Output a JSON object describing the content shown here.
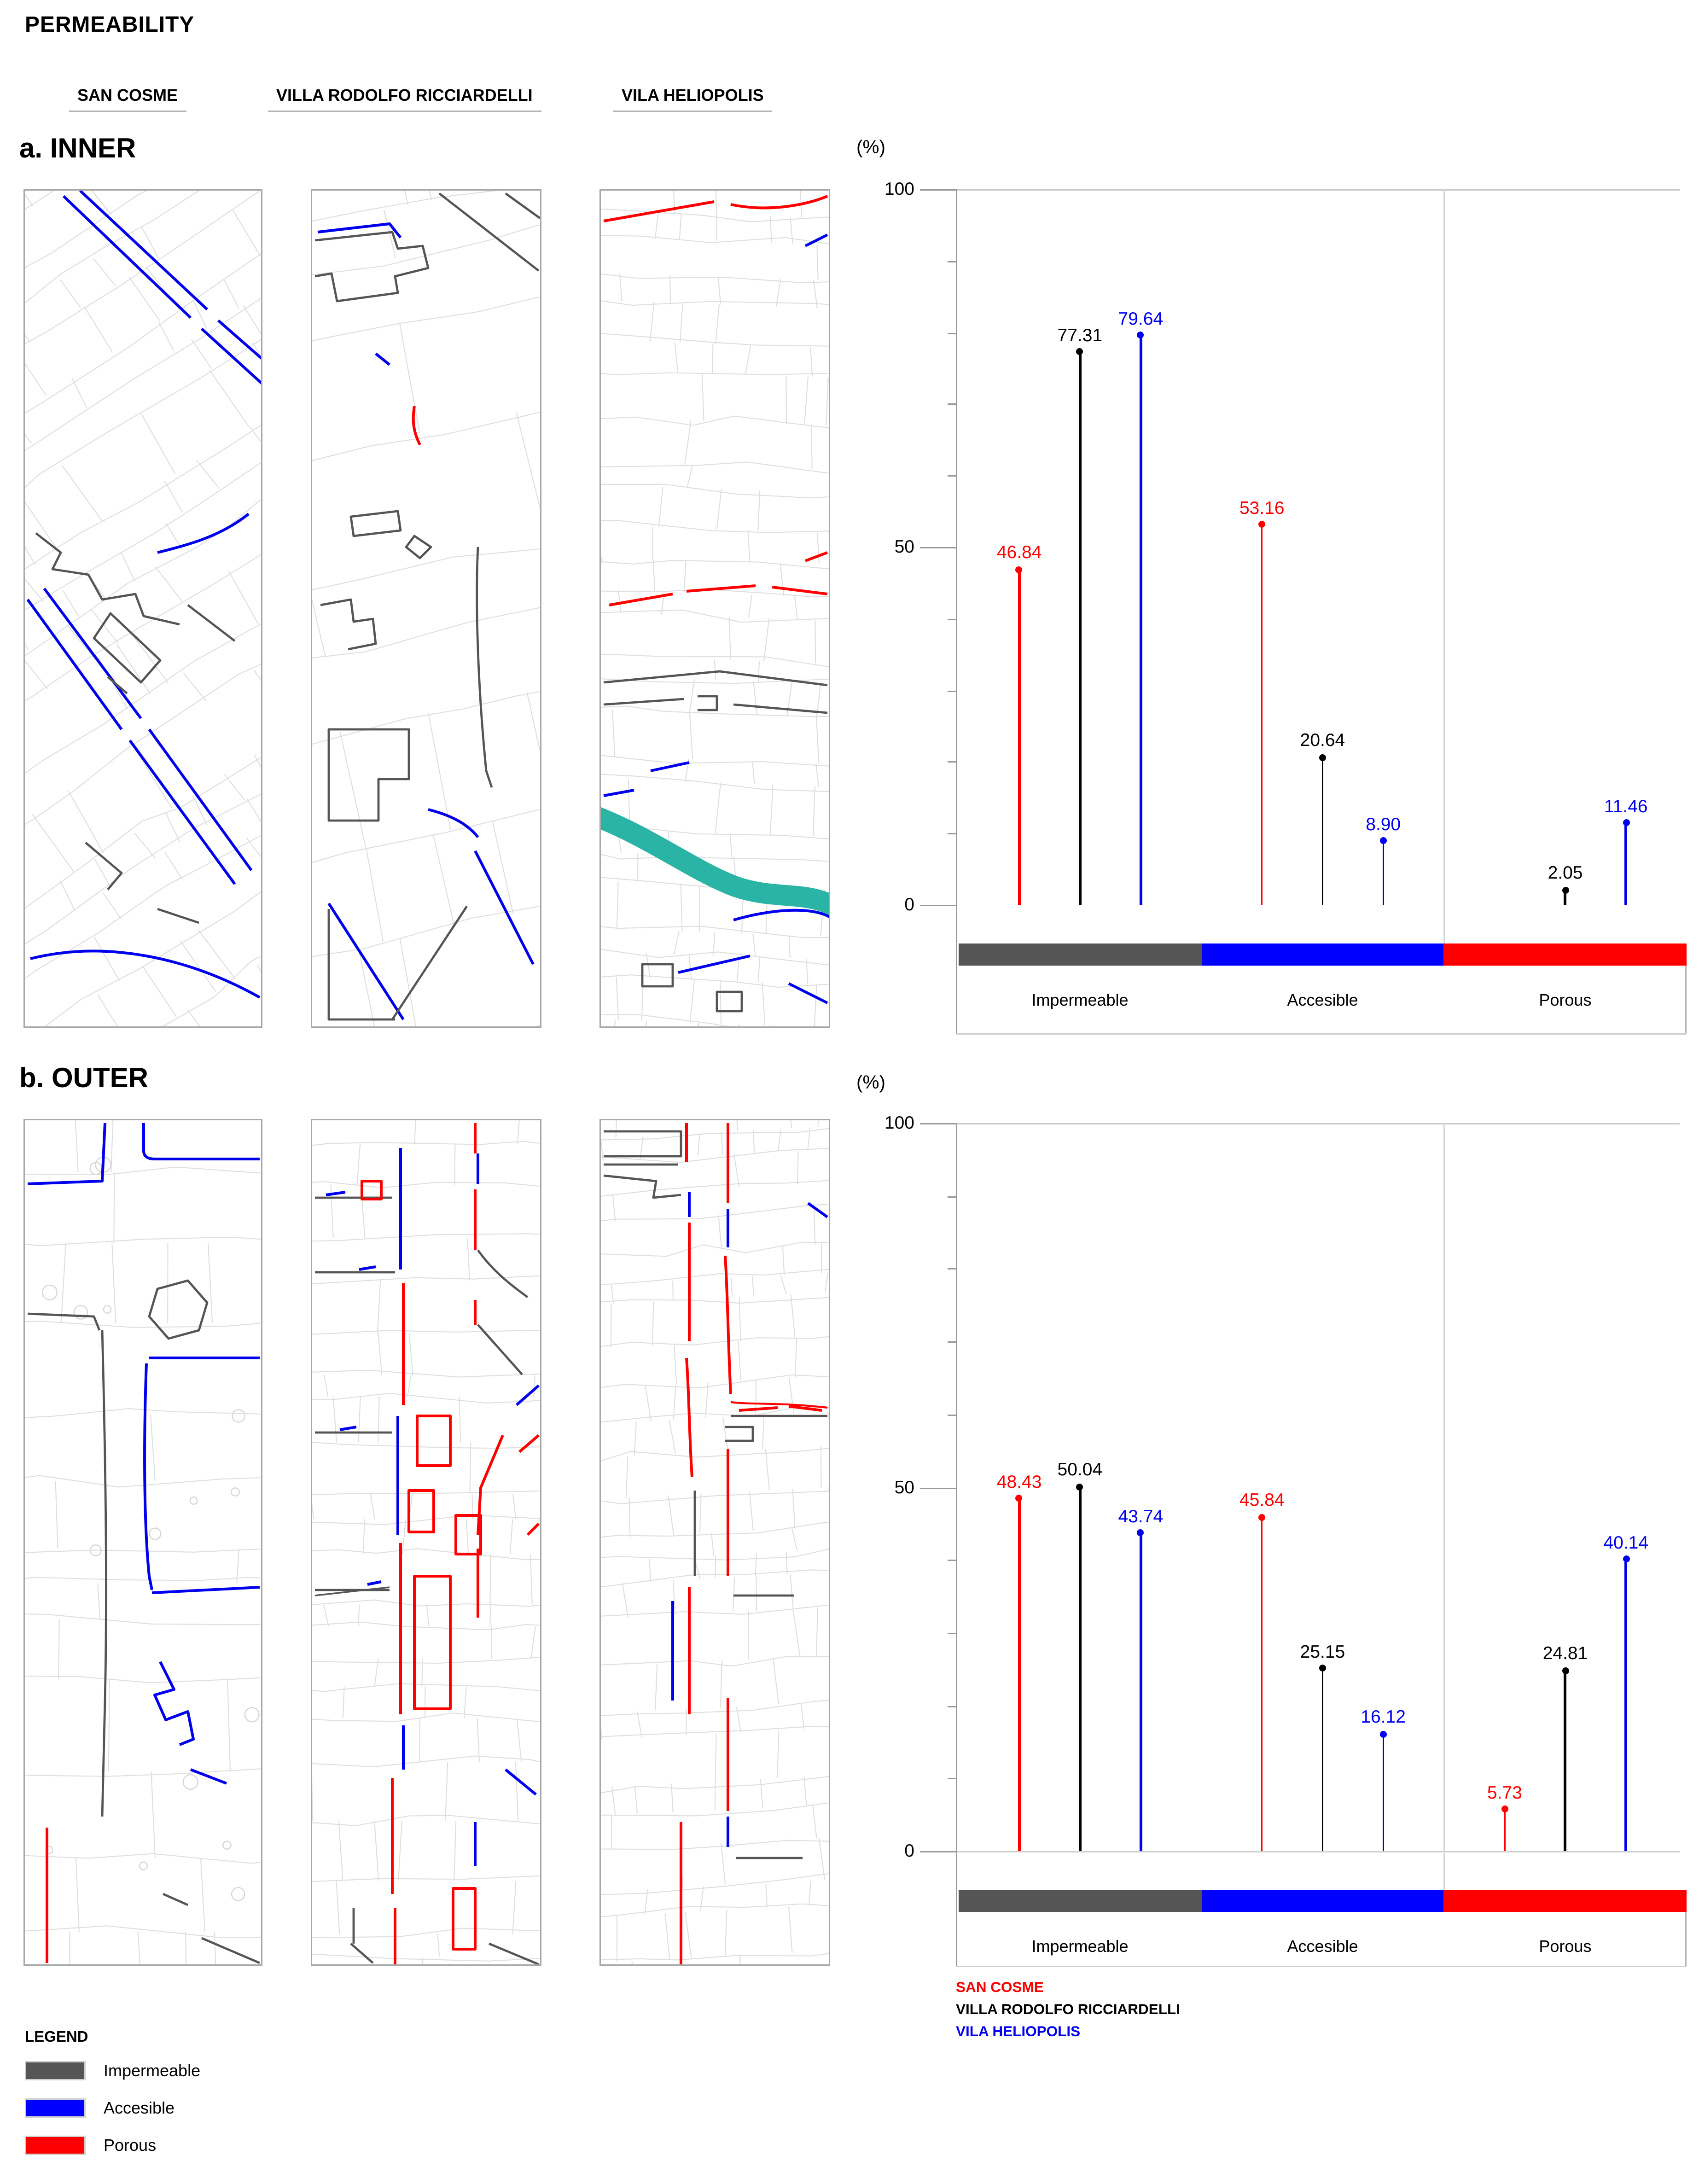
{
  "page": {
    "title": "PERMEABILITY"
  },
  "columns": [
    {
      "label": "SAN COSME"
    },
    {
      "label": "VILLA RODOLFO RICCIARDELLI"
    },
    {
      "label": "VILA HELIOPOLIS"
    }
  ],
  "sections": [
    {
      "id": "inner",
      "label": "a. INNER"
    },
    {
      "id": "outer",
      "label": "b. OUTER"
    }
  ],
  "axis": {
    "unit_label": "(%)",
    "major_ticks": [
      {
        "value": 100,
        "label": "100"
      },
      {
        "value": 50,
        "label": "50"
      },
      {
        "value": 0,
        "label": "0"
      }
    ],
    "minor_tick_step": 10
  },
  "categories": [
    {
      "label": "Impermeable",
      "color": "#555555"
    },
    {
      "label": "Accesible",
      "color": "#0000ff"
    },
    {
      "label": "Porous",
      "color": "#ff0000"
    }
  ],
  "series": [
    {
      "name": "SAN COSME",
      "color": "#ff0000"
    },
    {
      "name": "VILLA RODOLFO RICCIARDELLI",
      "color": "#000000"
    },
    {
      "name": "VILA HELIOPOLIS",
      "color": "#0000ee"
    }
  ],
  "legend": {
    "title": "LEGEND",
    "items": [
      {
        "label": "Impermeable",
        "color": "#555555"
      },
      {
        "label": "Accesible",
        "color": "#0000ff"
      },
      {
        "label": "Porous",
        "color": "#ff0000"
      }
    ]
  },
  "maps": {
    "rows": [
      {
        "section": "a. INNER",
        "panels": [
          "SAN COSME",
          "VILLA RODOLFO RICCIARDELLI",
          "VILA HELIOPOLIS"
        ]
      },
      {
        "section": "b. OUTER",
        "panels": [
          "SAN COSME",
          "VILLA RODOLFO RICCIARDELLI",
          "VILA HELIOPOLIS"
        ]
      }
    ],
    "river_color": "#2ab4a6"
  },
  "chart_data": [
    {
      "type": "lollipop",
      "title": "a. INNER",
      "unit": "%",
      "ylim": [
        0,
        100
      ],
      "grid": "top-line and category boundary only",
      "legend_position": "none",
      "categories": [
        "Impermeable",
        "Accesible",
        "Porous"
      ],
      "series": [
        {
          "name": "SAN COSME",
          "color": "#ff0000",
          "values": [
            46.84,
            53.16,
            null
          ]
        },
        {
          "name": "VILLA RODOLFO RICCIARDELLI",
          "color": "#000000",
          "values": [
            77.31,
            20.64,
            2.05
          ]
        },
        {
          "name": "VILA HELIOPOLIS",
          "color": "#0000ee",
          "values": [
            79.64,
            8.9,
            11.46
          ]
        }
      ]
    },
    {
      "type": "lollipop",
      "title": "b. OUTER",
      "unit": "%",
      "ylim": [
        0,
        100
      ],
      "grid": "top-line, zero-line and category boundary only",
      "legend_position": "below-left",
      "categories": [
        "Impermeable",
        "Accesible",
        "Porous"
      ],
      "series": [
        {
          "name": "SAN COSME",
          "color": "#ff0000",
          "values": [
            48.43,
            45.84,
            5.73
          ]
        },
        {
          "name": "VILLA RODOLFO RICCIARDELLI",
          "color": "#000000",
          "values": [
            50.04,
            25.15,
            24.81
          ]
        },
        {
          "name": "VILA HELIOPOLIS",
          "color": "#0000ee",
          "values": [
            43.74,
            16.12,
            40.14
          ]
        }
      ]
    }
  ]
}
